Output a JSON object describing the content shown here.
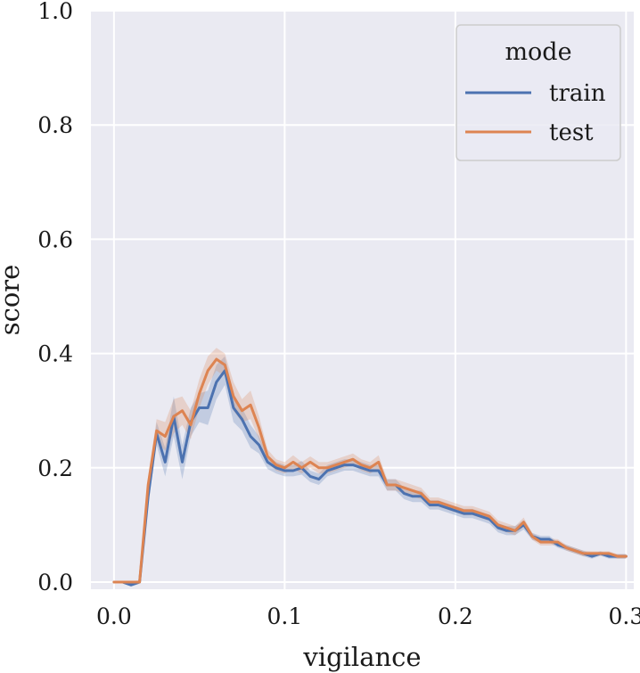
{
  "chart_data": {
    "type": "line",
    "xlabel": "vigilance",
    "ylabel": "score",
    "xlim": [
      -0.0135,
      0.3045
    ],
    "ylim": [
      -0.0125,
      1.0
    ],
    "xticks": [
      0.0,
      0.1,
      0.2,
      0.3
    ],
    "xtick_labels": [
      "0.0",
      "0.1",
      "0.2",
      "0.3"
    ],
    "yticks": [
      0.0,
      0.2,
      0.4,
      0.6,
      0.8,
      1.0
    ],
    "ytick_labels": [
      "0.0",
      "0.2",
      "0.4",
      "0.6",
      "0.8",
      "1.0"
    ],
    "grid": true,
    "legend": {
      "title": "mode",
      "position": "top-right",
      "entries": [
        "train",
        "test"
      ]
    },
    "x": [
      0.0,
      0.005,
      0.01,
      0.015,
      0.02,
      0.025,
      0.03,
      0.035,
      0.04,
      0.045,
      0.05,
      0.055,
      0.06,
      0.065,
      0.07,
      0.075,
      0.08,
      0.085,
      0.09,
      0.095,
      0.1,
      0.105,
      0.11,
      0.115,
      0.12,
      0.125,
      0.13,
      0.135,
      0.14,
      0.145,
      0.15,
      0.155,
      0.16,
      0.165,
      0.17,
      0.175,
      0.18,
      0.185,
      0.19,
      0.195,
      0.2,
      0.205,
      0.21,
      0.215,
      0.22,
      0.225,
      0.23,
      0.235,
      0.24,
      0.245,
      0.25,
      0.255,
      0.26,
      0.265,
      0.27,
      0.275,
      0.28,
      0.285,
      0.29,
      0.295,
      0.3
    ],
    "series": [
      {
        "name": "train",
        "color": "#4c72b0",
        "values": [
          0.0,
          0.0,
          -0.005,
          0.0,
          0.15,
          0.26,
          0.21,
          0.29,
          0.21,
          0.28,
          0.305,
          0.305,
          0.35,
          0.37,
          0.305,
          0.285,
          0.255,
          0.24,
          0.21,
          0.2,
          0.195,
          0.195,
          0.2,
          0.185,
          0.18,
          0.195,
          0.2,
          0.205,
          0.205,
          0.2,
          0.195,
          0.195,
          0.17,
          0.17,
          0.155,
          0.15,
          0.15,
          0.135,
          0.135,
          0.13,
          0.125,
          0.12,
          0.12,
          0.115,
          0.11,
          0.095,
          0.09,
          0.09,
          0.1,
          0.08,
          0.075,
          0.075,
          0.065,
          0.06,
          0.055,
          0.05,
          0.045,
          0.05,
          0.045,
          0.045,
          0.045
        ],
        "band_halfwidth": [
          0.0,
          0.002,
          0.003,
          0.003,
          0.015,
          0.02,
          0.025,
          0.035,
          0.03,
          0.025,
          0.025,
          0.03,
          0.03,
          0.025,
          0.025,
          0.02,
          0.02,
          0.015,
          0.012,
          0.01,
          0.01,
          0.01,
          0.012,
          0.01,
          0.01,
          0.01,
          0.01,
          0.01,
          0.01,
          0.01,
          0.01,
          0.01,
          0.01,
          0.01,
          0.01,
          0.01,
          0.01,
          0.008,
          0.008,
          0.008,
          0.008,
          0.008,
          0.008,
          0.008,
          0.008,
          0.008,
          0.008,
          0.008,
          0.008,
          0.006,
          0.006,
          0.006,
          0.005,
          0.005,
          0.005,
          0.005,
          0.004,
          0.004,
          0.004,
          0.004,
          0.004
        ]
      },
      {
        "name": "test",
        "color": "#dd8452",
        "values": [
          0.0,
          0.0,
          0.0,
          0.0,
          0.17,
          0.265,
          0.255,
          0.29,
          0.3,
          0.275,
          0.33,
          0.37,
          0.39,
          0.38,
          0.325,
          0.3,
          0.31,
          0.27,
          0.22,
          0.205,
          0.2,
          0.21,
          0.2,
          0.21,
          0.2,
          0.2,
          0.205,
          0.21,
          0.215,
          0.205,
          0.2,
          0.21,
          0.17,
          0.17,
          0.165,
          0.16,
          0.155,
          0.14,
          0.14,
          0.135,
          0.13,
          0.125,
          0.125,
          0.12,
          0.115,
          0.1,
          0.095,
          0.09,
          0.105,
          0.08,
          0.07,
          0.07,
          0.07,
          0.06,
          0.055,
          0.05,
          0.05,
          0.05,
          0.05,
          0.045,
          0.045
        ],
        "band_halfwidth": [
          0.0,
          0.002,
          0.002,
          0.003,
          0.015,
          0.02,
          0.025,
          0.03,
          0.025,
          0.025,
          0.025,
          0.025,
          0.02,
          0.02,
          0.025,
          0.02,
          0.025,
          0.02,
          0.012,
          0.01,
          0.01,
          0.012,
          0.01,
          0.01,
          0.01,
          0.01,
          0.01,
          0.01,
          0.01,
          0.01,
          0.01,
          0.012,
          0.01,
          0.01,
          0.01,
          0.01,
          0.01,
          0.008,
          0.008,
          0.008,
          0.008,
          0.008,
          0.008,
          0.008,
          0.008,
          0.008,
          0.008,
          0.008,
          0.008,
          0.006,
          0.006,
          0.006,
          0.005,
          0.005,
          0.005,
          0.005,
          0.004,
          0.004,
          0.004,
          0.004,
          0.004
        ]
      }
    ],
    "colors": {
      "plot_background": "#eaeaf2",
      "grid": "#ffffff"
    }
  }
}
